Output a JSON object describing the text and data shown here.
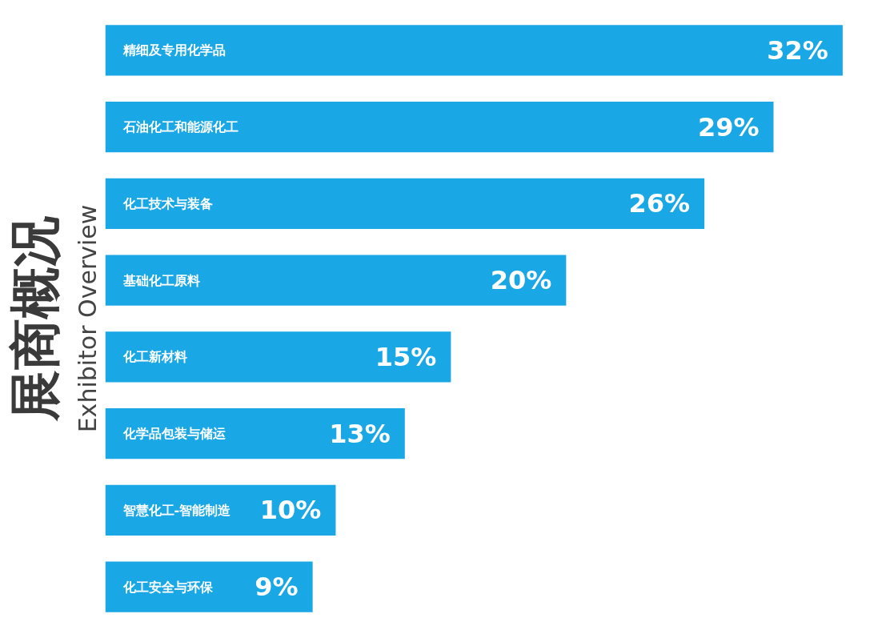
{
  "chart_data": {
    "type": "bar",
    "orientation": "horizontal",
    "title": "展商概况",
    "subtitle": "Exhibitor Overview",
    "categories": [
      "精细及专用化学品",
      "石油化工和能源化工",
      "化工技术与装备",
      "基础化工原料",
      "化工新材料",
      "化学品包装与储运",
      "智慧化工-智能制造",
      "化工安全与环保"
    ],
    "values": [
      32,
      29,
      26,
      20,
      15,
      13,
      10,
      9
    ],
    "value_labels": [
      "32%",
      "29%",
      "26%",
      "20%",
      "15%",
      "13%",
      "10%",
      "9%"
    ],
    "color": "#1aa7e5",
    "tick_labels": false,
    "grid": false
  }
}
